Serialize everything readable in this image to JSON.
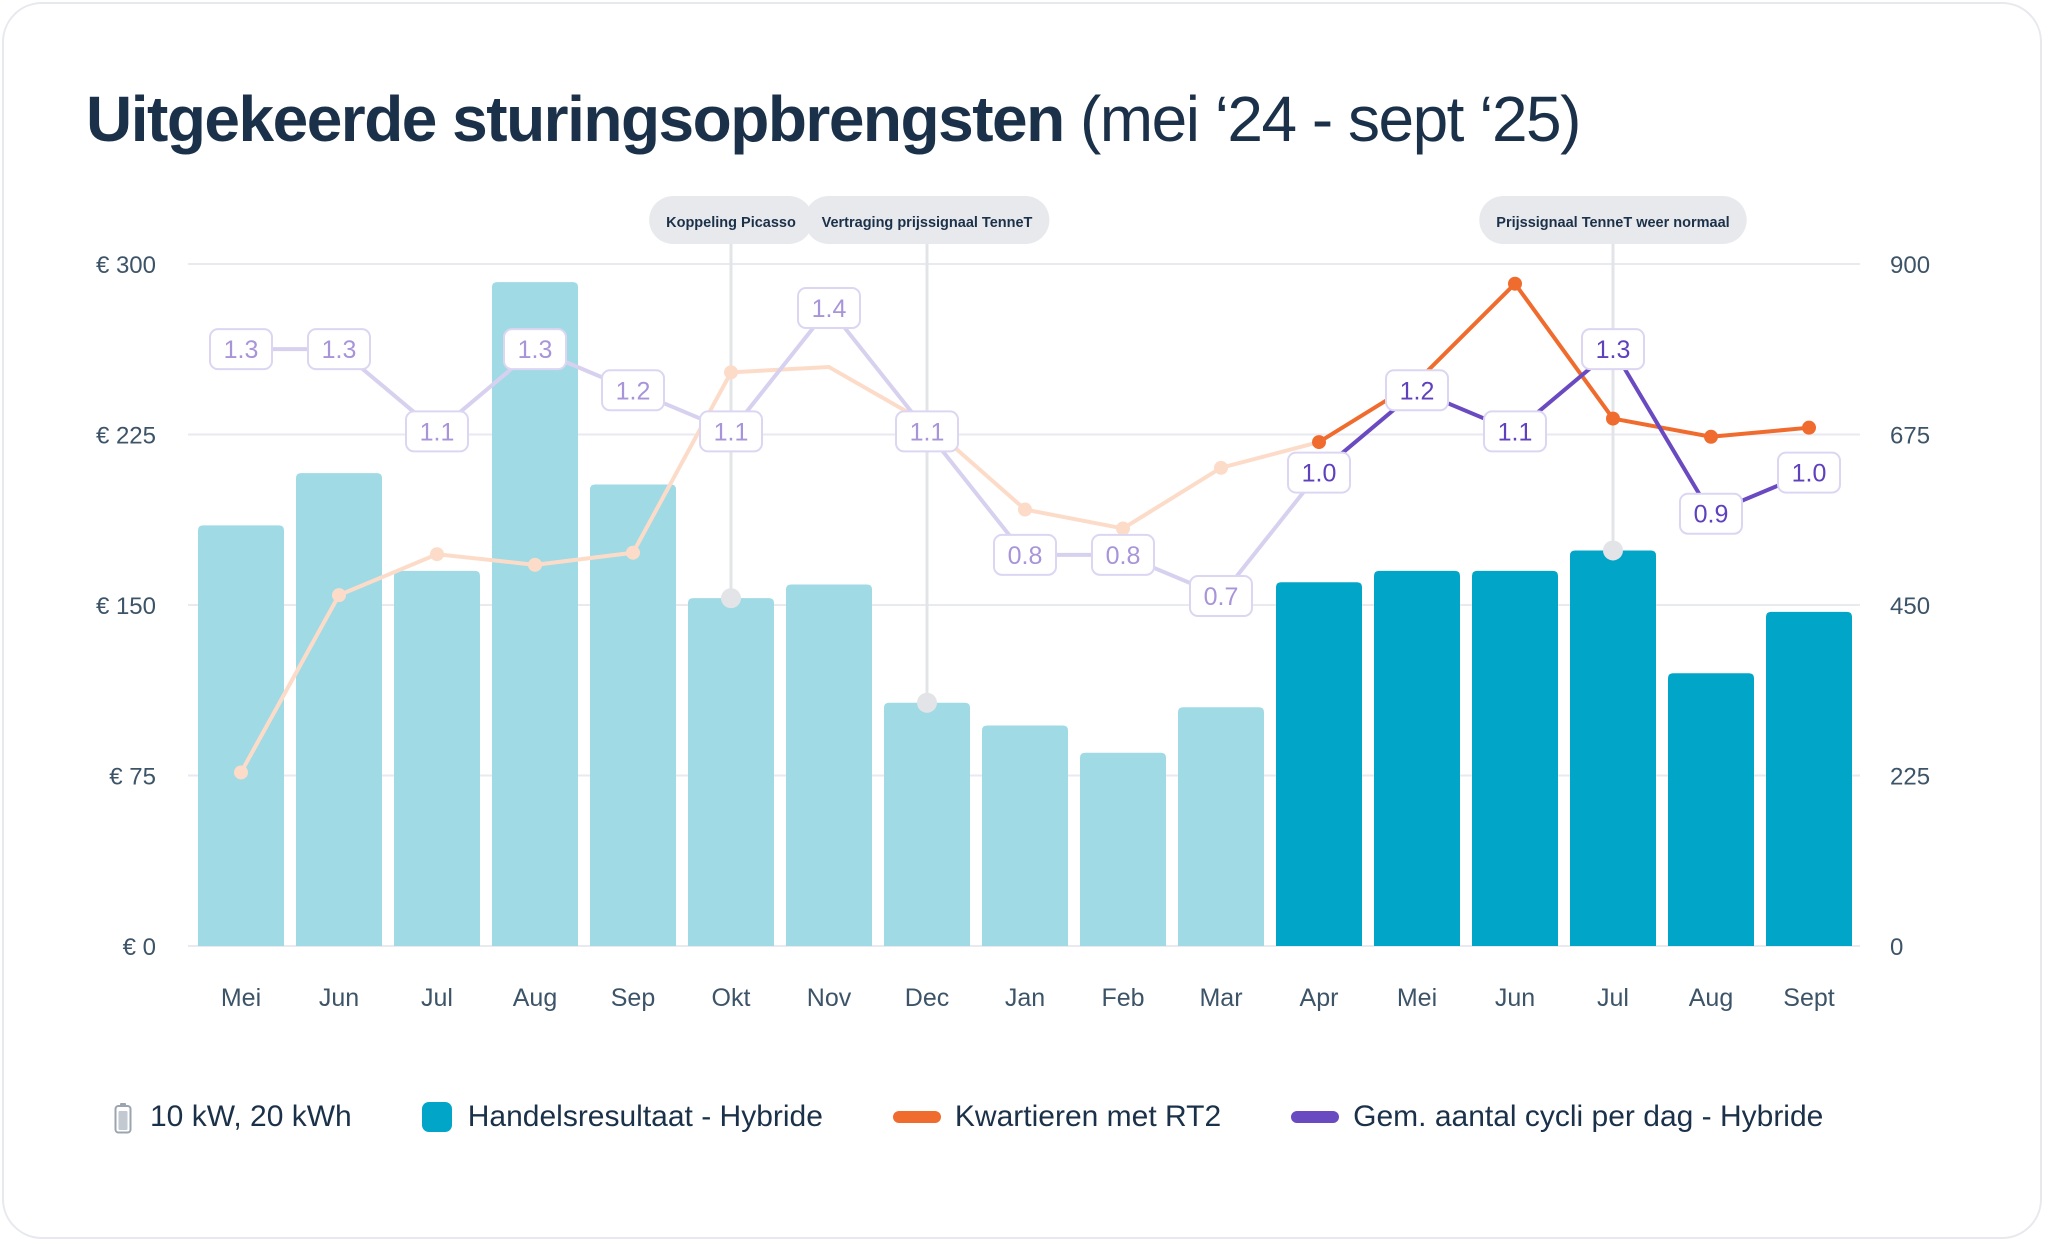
{
  "title": {
    "bold": "Uitgekeerde sturingsopbrengsten",
    "light": "(mei ‘24 - sept ‘25)"
  },
  "colors": {
    "bar_faded": "#a0dae5",
    "bar_active": "#00a5c8",
    "orange_active": "#f06c2e",
    "orange_faded": "#fcdcc9",
    "purple_active": "#6a4ac1",
    "purple_faded": "#d7d1ef",
    "purple_label_faded": "#a894d8",
    "purple_label_active": "#5f40bd",
    "label_border": "#dcd6f2"
  },
  "annotations": [
    {
      "label": "Koppeling Picasso",
      "month_index": 5
    },
    {
      "label": "Vertraging prijssignaal TenneT",
      "month_index": 7
    },
    {
      "label": "Prijssignaal TenneT weer normaal",
      "month_index": 14
    }
  ],
  "legend": [
    {
      "icon": "battery-icon",
      "label": "10 kW, 20 kWh"
    },
    {
      "icon": "bar-swatch",
      "label": "Handelsresultaat - Hybride"
    },
    {
      "icon": "orange-line-swatch",
      "label": "Kwartieren met RT2"
    },
    {
      "icon": "purple-line-swatch",
      "label": "Gem. aantal cycli per dag - Hybride"
    }
  ],
  "chart_data": {
    "type": "bar",
    "title": "Uitgekeerde sturingsopbrengsten (mei ‘24 - sept ‘25)",
    "categories": [
      "Mei",
      "Jun",
      "Jul",
      "Aug",
      "Sep",
      "Okt",
      "Nov",
      "Dec",
      "Jan",
      "Feb",
      "Mar",
      "Apr",
      "Mei",
      "Jun",
      "Jul",
      "Aug",
      "Sept"
    ],
    "highlight_from_index": 11,
    "y_left": {
      "ticks": [
        "€ 0",
        "€ 75",
        "€ 150",
        "€ 225",
        "€ 300"
      ],
      "range": [
        0,
        300
      ]
    },
    "y_right": {
      "ticks": [
        "0",
        "225",
        "450",
        "675",
        "900"
      ],
      "range": [
        0,
        900
      ]
    },
    "grid": true,
    "legend_position": "bottom",
    "series": [
      {
        "name": "Handelsresultaat - Hybride",
        "type": "bar",
        "axis": "left",
        "values": [
          185,
          208,
          165,
          292,
          203,
          153,
          159,
          107,
          97,
          85,
          105,
          160,
          165,
          165,
          174,
          120,
          147
        ]
      },
      {
        "name": "Kwartieren met RT2",
        "type": "line",
        "axis": "right",
        "values": [
          229,
          463,
          517,
          503,
          519,
          757,
          764,
          690,
          576,
          551,
          631,
          665,
          745,
          874,
          696,
          672,
          684
        ],
        "markers_hidden": [
          6
        ]
      },
      {
        "name": "Gem. aantal cycli per dag - Hybride",
        "type": "line",
        "axis": "label-scale",
        "values": [
          1.3,
          1.3,
          1.1,
          1.3,
          1.2,
          1.1,
          1.4,
          1.1,
          0.8,
          0.8,
          0.7,
          1.0,
          1.2,
          1.1,
          1.3,
          0.9,
          1.0
        ],
        "labels": [
          "1.3",
          "1.3",
          "1.1",
          "1.3",
          "1.2",
          "1.1",
          "1.4",
          "1.1",
          "0.8",
          "0.8",
          "0.7",
          "1.0",
          "1.2",
          "1.1",
          "1.3",
          "0.9",
          "1.0"
        ]
      }
    ]
  }
}
